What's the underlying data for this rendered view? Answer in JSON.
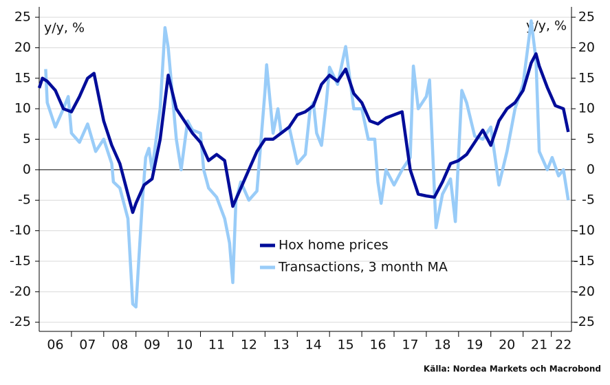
{
  "chart_data": {
    "type": "line",
    "y_label": "y/y, %",
    "y2_label": "y/y, %",
    "source": "Källa: Nordea Markets och Macrobond",
    "xlim": [
      2006.0,
      2022.5
    ],
    "xticks": [
      {
        "value": 2006.5,
        "label": "06"
      },
      {
        "value": 2007.5,
        "label": "07"
      },
      {
        "value": 2008.5,
        "label": "08"
      },
      {
        "value": 2009.5,
        "label": "09"
      },
      {
        "value": 2010.5,
        "label": "10"
      },
      {
        "value": 2011.5,
        "label": "11"
      },
      {
        "value": 2012.5,
        "label": "12"
      },
      {
        "value": 2013.5,
        "label": "13"
      },
      {
        "value": 2014.5,
        "label": "14"
      },
      {
        "value": 2015.5,
        "label": "15"
      },
      {
        "value": 2016.5,
        "label": "16"
      },
      {
        "value": 2017.5,
        "label": "17"
      },
      {
        "value": 2018.5,
        "label": "18"
      },
      {
        "value": 2019.5,
        "label": "19"
      },
      {
        "value": 2020.5,
        "label": "20"
      },
      {
        "value": 2021.5,
        "label": "21"
      },
      {
        "value": 2022.25,
        "label": "22"
      }
    ],
    "ylim": [
      -26.5,
      26.7
    ],
    "yticks": [
      -25,
      -20,
      -15,
      -10,
      -5,
      0,
      5,
      10,
      15,
      20,
      25
    ],
    "y2lim": [
      -26.5,
      26.7
    ],
    "y2ticks": [
      -25,
      -20,
      -15,
      -10,
      -5,
      0,
      5,
      10,
      15,
      20,
      25
    ],
    "grid": true,
    "series": [
      {
        "name": "Hox home prices",
        "color": "#000c99",
        "x": [
          2006.0,
          2006.1,
          2006.25,
          2006.5,
          2006.75,
          2007.0,
          2007.25,
          2007.5,
          2007.7,
          2008.0,
          2008.25,
          2008.5,
          2008.75,
          2008.9,
          2009.0,
          2009.25,
          2009.5,
          2009.75,
          2010.0,
          2010.25,
          2010.5,
          2010.75,
          2011.0,
          2011.25,
          2011.5,
          2011.75,
          2012.0,
          2012.25,
          2012.5,
          2012.75,
          2013.0,
          2013.25,
          2013.5,
          2013.75,
          2014.0,
          2014.25,
          2014.5,
          2014.75,
          2015.0,
          2015.25,
          2015.5,
          2015.75,
          2016.0,
          2016.25,
          2016.5,
          2016.75,
          2017.0,
          2017.25,
          2017.5,
          2017.75,
          2018.0,
          2018.25,
          2018.5,
          2018.75,
          2019.0,
          2019.25,
          2019.5,
          2019.75,
          2020.0,
          2020.25,
          2020.5,
          2020.75,
          2021.0,
          2021.25,
          2021.4,
          2021.5,
          2021.75,
          2022.0,
          2022.25,
          2022.4
        ],
        "values": [
          13.4,
          15,
          14.5,
          13,
          10,
          9.5,
          12,
          15,
          15.8,
          8,
          4,
          1,
          -4,
          -7,
          -5.5,
          -2.5,
          -1.5,
          5,
          15.5,
          10,
          8,
          6,
          4.5,
          1.5,
          2.5,
          1.5,
          -6,
          -3,
          0,
          3,
          5,
          5,
          6,
          7,
          9,
          9.5,
          10.5,
          14,
          15.5,
          14.5,
          16.5,
          12.5,
          11,
          8,
          7.5,
          8.5,
          9,
          9.5,
          0,
          -4,
          -4.3,
          -4.5,
          -2,
          1,
          1.5,
          2.5,
          4.5,
          6.5,
          4,
          8,
          10,
          11,
          13,
          17.5,
          19,
          17,
          13.5,
          10.5,
          10,
          6.2
        ]
      },
      {
        "name": "Transactions, 3 month MA",
        "color": "#99ccf8",
        "x": [
          2006.2,
          2006.25,
          2006.5,
          2006.75,
          2006.9,
          2007.0,
          2007.25,
          2007.5,
          2007.75,
          2008.0,
          2008.25,
          2008.3,
          2008.5,
          2008.75,
          2008.9,
          2009.0,
          2009.2,
          2009.3,
          2009.4,
          2009.5,
          2009.75,
          2009.9,
          2010.0,
          2010.25,
          2010.4,
          2010.6,
          2010.75,
          2011.0,
          2011.1,
          2011.25,
          2011.5,
          2011.75,
          2011.9,
          2012.0,
          2012.1,
          2012.25,
          2012.5,
          2012.75,
          2013.0,
          2013.05,
          2013.25,
          2013.4,
          2013.5,
          2013.75,
          2014.0,
          2014.25,
          2014.4,
          2014.5,
          2014.6,
          2014.75,
          2014.9,
          2015.0,
          2015.25,
          2015.5,
          2015.75,
          2016.0,
          2016.2,
          2016.4,
          2016.5,
          2016.6,
          2016.75,
          2017.0,
          2017.25,
          2017.5,
          2017.6,
          2017.75,
          2018.0,
          2018.1,
          2018.3,
          2018.5,
          2018.75,
          2018.9,
          2019.1,
          2019.25,
          2019.5,
          2019.75,
          2020.0,
          2020.25,
          2020.5,
          2020.75,
          2021.0,
          2021.25,
          2021.4,
          2021.5,
          2021.75,
          2021.9,
          2022.1,
          2022.25,
          2022.4
        ],
        "values": [
          16.5,
          11,
          7,
          10,
          12,
          6,
          4.5,
          7.5,
          3,
          5,
          1,
          -2,
          -3,
          -8,
          -22,
          -22.5,
          -5,
          2,
          3.5,
          0,
          10,
          23.3,
          20,
          5,
          0,
          8,
          6.5,
          6,
          0,
          -3,
          -4.5,
          -8,
          -12,
          -18.5,
          -5,
          -2,
          -5,
          -3.5,
          13,
          17.2,
          6,
          10,
          6,
          7,
          1,
          2.5,
          10,
          11,
          6,
          4,
          11,
          16.8,
          14,
          20.2,
          10,
          10,
          5,
          5,
          -2,
          -5.5,
          0,
          -2.5,
          0,
          2,
          17,
          10,
          12,
          14.7,
          -9.5,
          -4,
          -1.5,
          -8.5,
          13,
          11,
          5.5,
          5,
          7,
          -2.5,
          3,
          10,
          14,
          24.4,
          18,
          3,
          0,
          2,
          -1,
          0,
          -5
        ]
      }
    ]
  }
}
